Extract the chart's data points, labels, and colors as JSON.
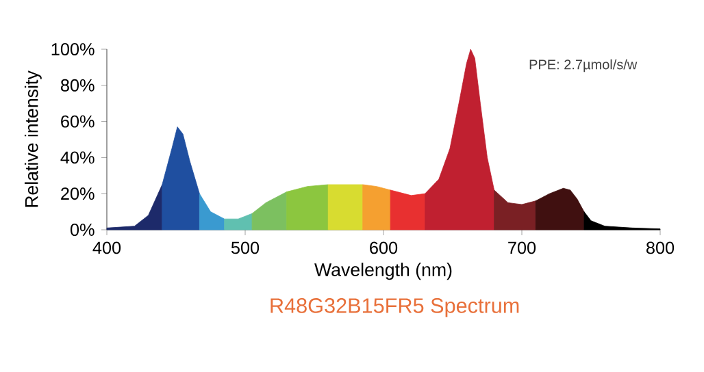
{
  "chart_data": {
    "type": "area",
    "title": "R48G32B15FR5 Spectrum",
    "xlabel": "Wavelength (nm)",
    "ylabel": "Relative intensity",
    "annotations": [
      "PPE:  2.7µmol/s/w"
    ],
    "series": [
      {
        "color": "#1d2a6a",
        "x": [
          400,
          420,
          430,
          440
        ],
        "values": [
          1,
          2,
          8,
          25
        ]
      },
      {
        "color": "#1f4fa0",
        "x": [
          440,
          447,
          451,
          455,
          460,
          467
        ],
        "values": [
          25,
          45,
          57,
          53,
          38,
          20
        ]
      },
      {
        "color": "#3a9ad0",
        "x": [
          467,
          475,
          485
        ],
        "values": [
          20,
          10,
          6
        ]
      },
      {
        "color": "#60c0b0",
        "x": [
          485,
          495,
          505
        ],
        "values": [
          6,
          6,
          9
        ]
      },
      {
        "color": "#7cc060",
        "x": [
          505,
          515,
          530
        ],
        "values": [
          9,
          15,
          21
        ]
      },
      {
        "color": "#8cc63f",
        "x": [
          530,
          545,
          560
        ],
        "values": [
          21,
          24,
          25
        ]
      },
      {
        "color": "#d8dc30",
        "x": [
          560,
          580,
          585
        ],
        "values": [
          25,
          25,
          25
        ]
      },
      {
        "color": "#f5a030",
        "x": [
          585,
          595,
          605
        ],
        "values": [
          25,
          24,
          22
        ]
      },
      {
        "color": "#e83030",
        "x": [
          605,
          610,
          620,
          630
        ],
        "values": [
          22,
          21,
          19,
          20
        ]
      },
      {
        "color": "#c02030",
        "x": [
          630,
          640,
          648,
          655,
          660,
          663,
          666,
          670,
          675,
          680
        ],
        "values": [
          20,
          28,
          45,
          72,
          92,
          100,
          95,
          70,
          40,
          22
        ]
      },
      {
        "color": "#7a2024",
        "x": [
          680,
          690,
          700,
          710
        ],
        "values": [
          22,
          15,
          14,
          16
        ]
      },
      {
        "color": "#401010",
        "x": [
          710,
          720,
          730,
          735,
          740,
          745
        ],
        "values": [
          16,
          20,
          23,
          22,
          17,
          10
        ]
      },
      {
        "color": "#000000",
        "x": [
          745,
          750,
          760,
          780,
          800
        ],
        "values": [
          10,
          5,
          2,
          1,
          0.5
        ]
      }
    ],
    "xlim": [
      400,
      800
    ],
    "xticks": [
      400,
      500,
      600,
      700,
      800
    ],
    "ylim": [
      0,
      100
    ],
    "yticks": [
      {
        "value": 0,
        "label": "0%"
      },
      {
        "value": 20,
        "label": "20%"
      },
      {
        "value": 40,
        "label": "40%"
      },
      {
        "value": 60,
        "label": "60%"
      },
      {
        "value": 80,
        "label": "80%"
      },
      {
        "value": 100,
        "label": "100%"
      }
    ]
  }
}
